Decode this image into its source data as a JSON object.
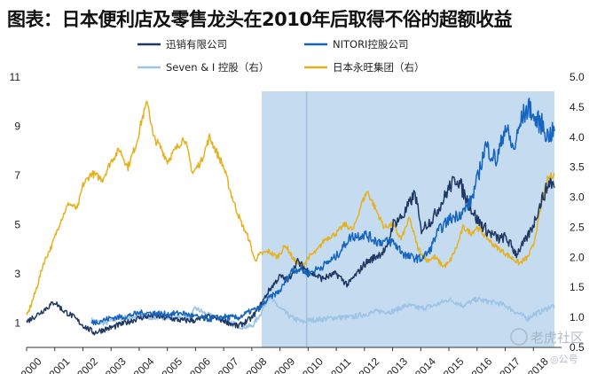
{
  "title": "图表：日本便利店及零售龙头在2010年后取得不俗的超额收益",
  "watermark": {
    "brand": "老虎社区",
    "sub": "◎公号"
  },
  "chart_data": {
    "type": "line",
    "x_years": [
      "2000",
      "2001",
      "2002",
      "2003",
      "2004",
      "2005",
      "2006",
      "2007",
      "2008",
      "2009",
      "2010",
      "2011",
      "2012",
      "2013",
      "2014",
      "2015",
      "2016",
      "2017",
      "2018"
    ],
    "ylim_left": [
      0,
      11
    ],
    "yticks_left": [
      "1",
      "3",
      "5",
      "7",
      "9",
      "11"
    ],
    "ylim_right": [
      0.5,
      5.0
    ],
    "yticks_right": [
      "0.5",
      "1.0",
      "1.5",
      "2.0",
      "2.5",
      "3.0",
      "3.5",
      "4.0",
      "4.5",
      "5.0"
    ],
    "shaded_period": {
      "start": 2008.35,
      "end": 2018.75,
      "divider": 2009.95,
      "color": "#c5dcf0"
    },
    "series": [
      {
        "name": "迅销有限公司",
        "color": "#1f3864",
        "axis": "left",
        "points": [
          [
            2000,
            1.05
          ],
          [
            2000.4,
            1.35
          ],
          [
            2000.7,
            1.6
          ],
          [
            2001,
            1.85
          ],
          [
            2001.3,
            1.5
          ],
          [
            2001.6,
            1.3
          ],
          [
            2002,
            0.9
          ],
          [
            2002.4,
            0.6
          ],
          [
            2002.8,
            0.75
          ],
          [
            2003,
            0.8
          ],
          [
            2003.5,
            1.0
          ],
          [
            2004,
            1.2
          ],
          [
            2004.5,
            1.3
          ],
          [
            2005,
            1.2
          ],
          [
            2005.5,
            1.1
          ],
          [
            2006,
            1.1
          ],
          [
            2006.5,
            1.25
          ],
          [
            2007,
            1.1
          ],
          [
            2007.5,
            0.85
          ],
          [
            2008,
            1.2
          ],
          [
            2008.3,
            1.7
          ],
          [
            2008.6,
            2.3
          ],
          [
            2009,
            2.9
          ],
          [
            2009.3,
            2.7
          ],
          [
            2009.6,
            3.5
          ],
          [
            2010,
            3.1
          ],
          [
            2010.5,
            2.8
          ],
          [
            2011,
            3.0
          ],
          [
            2011.4,
            2.55
          ],
          [
            2011.8,
            3.1
          ],
          [
            2012,
            3.4
          ],
          [
            2012.4,
            3.7
          ],
          [
            2012.8,
            4.0
          ],
          [
            2013,
            5.0
          ],
          [
            2013.4,
            5.4
          ],
          [
            2013.8,
            6.3
          ],
          [
            2014,
            4.8
          ],
          [
            2014.4,
            5.2
          ],
          [
            2014.8,
            6.0
          ],
          [
            2015,
            6.5
          ],
          [
            2015.3,
            6.9
          ],
          [
            2015.6,
            6.1
          ],
          [
            2016,
            5.2
          ],
          [
            2016.4,
            4.7
          ],
          [
            2016.8,
            4.4
          ],
          [
            2017,
            4.5
          ],
          [
            2017.4,
            3.8
          ],
          [
            2017.8,
            4.5
          ],
          [
            2018,
            5.0
          ],
          [
            2018.3,
            6.0
          ],
          [
            2018.6,
            6.8
          ],
          [
            2018.75,
            6.5
          ]
        ]
      },
      {
        "name": "NITORI控股公司",
        "color": "#1565c0",
        "axis": "left",
        "points": [
          [
            2002.3,
            1.0
          ],
          [
            2002.7,
            1.1
          ],
          [
            2003,
            1.2
          ],
          [
            2003.5,
            1.25
          ],
          [
            2004,
            1.4
          ],
          [
            2004.5,
            1.4
          ],
          [
            2005,
            1.35
          ],
          [
            2005.5,
            1.4
          ],
          [
            2006,
            1.25
          ],
          [
            2006.5,
            1.15
          ],
          [
            2007,
            1.25
          ],
          [
            2007.5,
            1.2
          ],
          [
            2008,
            1.5
          ],
          [
            2008.3,
            1.6
          ],
          [
            2008.6,
            2.0
          ],
          [
            2009,
            2.3
          ],
          [
            2009.4,
            3.1
          ],
          [
            2009.7,
            3.2
          ],
          [
            2010,
            3.0
          ],
          [
            2010.5,
            3.3
          ],
          [
            2011,
            3.7
          ],
          [
            2011.5,
            4.5
          ],
          [
            2012,
            4.6
          ],
          [
            2012.5,
            4.3
          ],
          [
            2013,
            4.3
          ],
          [
            2013.5,
            3.7
          ],
          [
            2014,
            3.6
          ],
          [
            2014.3,
            3.9
          ],
          [
            2014.6,
            4.7
          ],
          [
            2015,
            5.2
          ],
          [
            2015.5,
            5.5
          ],
          [
            2015.8,
            6.0
          ],
          [
            2016,
            6.8
          ],
          [
            2016.3,
            8.2
          ],
          [
            2016.7,
            7.6
          ],
          [
            2017,
            9.0
          ],
          [
            2017.3,
            8.0
          ],
          [
            2017.6,
            9.4
          ],
          [
            2017.9,
            9.8
          ],
          [
            2018,
            9.3
          ],
          [
            2018.3,
            9.1
          ],
          [
            2018.5,
            8.6
          ],
          [
            2018.75,
            8.8
          ]
        ]
      },
      {
        "name": "Seven & I 控股（右）",
        "color": "#9dc3e6",
        "axis": "right",
        "points": [
          [
            2002.3,
            0.95
          ],
          [
            2002.8,
            0.9
          ],
          [
            2003.3,
            1.0
          ],
          [
            2003.8,
            1.0
          ],
          [
            2004.3,
            1.0
          ],
          [
            2004.8,
            1.0
          ],
          [
            2005.3,
            0.98
          ],
          [
            2005.8,
            1.0
          ],
          [
            2006,
            1.15
          ],
          [
            2006.4,
            1.05
          ],
          [
            2006.8,
            0.98
          ],
          [
            2007.2,
            0.92
          ],
          [
            2007.6,
            0.85
          ],
          [
            2008,
            0.85
          ],
          [
            2008.3,
            1.05
          ],
          [
            2008.6,
            1.35
          ],
          [
            2009,
            1.15
          ],
          [
            2009.4,
            1.0
          ],
          [
            2009.8,
            0.92
          ],
          [
            2010,
            0.95
          ],
          [
            2010.5,
            0.97
          ],
          [
            2011,
            1.0
          ],
          [
            2011.5,
            1.0
          ],
          [
            2012,
            1.05
          ],
          [
            2012.5,
            1.1
          ],
          [
            2013,
            1.1
          ],
          [
            2013.5,
            1.2
          ],
          [
            2014,
            1.15
          ],
          [
            2014.5,
            1.2
          ],
          [
            2015,
            1.3
          ],
          [
            2015.5,
            1.2
          ],
          [
            2016,
            1.3
          ],
          [
            2016.3,
            1.27
          ],
          [
            2016.7,
            1.24
          ],
          [
            2017,
            1.2
          ],
          [
            2017.4,
            1.08
          ],
          [
            2017.8,
            0.98
          ],
          [
            2018,
            1.05
          ],
          [
            2018.3,
            1.1
          ],
          [
            2018.6,
            1.18
          ],
          [
            2018.75,
            1.2
          ]
        ]
      },
      {
        "name": "日本永旺集团（右）",
        "color": "#e6b11e",
        "axis": "right",
        "points": [
          [
            2000,
            1.0
          ],
          [
            2000.3,
            1.4
          ],
          [
            2000.6,
            1.9
          ],
          [
            2000.9,
            2.2
          ],
          [
            2001.2,
            2.6
          ],
          [
            2001.5,
            2.9
          ],
          [
            2001.8,
            2.8
          ],
          [
            2002,
            3.2
          ],
          [
            2002.3,
            3.4
          ],
          [
            2002.7,
            3.3
          ],
          [
            2003,
            3.6
          ],
          [
            2003.3,
            3.8
          ],
          [
            2003.6,
            3.5
          ],
          [
            2003.9,
            3.9
          ],
          [
            2004.1,
            4.3
          ],
          [
            2004.3,
            4.6
          ],
          [
            2004.5,
            4.0
          ],
          [
            2004.8,
            3.8
          ],
          [
            2005,
            3.6
          ],
          [
            2005.3,
            3.8
          ],
          [
            2005.6,
            4.0
          ],
          [
            2005.9,
            3.4
          ],
          [
            2006.2,
            3.6
          ],
          [
            2006.5,
            4.0
          ],
          [
            2006.8,
            3.7
          ],
          [
            2007,
            3.5
          ],
          [
            2007.3,
            3.0
          ],
          [
            2007.6,
            2.6
          ],
          [
            2007.9,
            2.3
          ],
          [
            2008.1,
            1.95
          ],
          [
            2008.3,
            2.05
          ],
          [
            2008.6,
            2.1
          ],
          [
            2008.9,
            2.0
          ],
          [
            2009.2,
            2.2
          ],
          [
            2009.5,
            1.95
          ],
          [
            2009.8,
            1.85
          ],
          [
            2010,
            2.0
          ],
          [
            2010.3,
            2.1
          ],
          [
            2010.6,
            2.3
          ],
          [
            2011,
            2.4
          ],
          [
            2011.3,
            2.55
          ],
          [
            2011.6,
            2.45
          ],
          [
            2011.9,
            2.9
          ],
          [
            2012.1,
            3.1
          ],
          [
            2012.4,
            2.8
          ],
          [
            2012.7,
            2.5
          ],
          [
            2013,
            2.55
          ],
          [
            2013.3,
            2.3
          ],
          [
            2013.6,
            2.65
          ],
          [
            2013.9,
            2.15
          ],
          [
            2014.2,
            1.95
          ],
          [
            2014.5,
            2.0
          ],
          [
            2014.8,
            1.85
          ],
          [
            2015,
            1.9
          ],
          [
            2015.3,
            2.2
          ],
          [
            2015.5,
            2.5
          ],
          [
            2015.8,
            2.4
          ],
          [
            2016,
            2.5
          ],
          [
            2016.3,
            2.35
          ],
          [
            2016.6,
            2.2
          ],
          [
            2016.9,
            2.1
          ],
          [
            2017.2,
            2.0
          ],
          [
            2017.5,
            1.9
          ],
          [
            2017.8,
            2.0
          ],
          [
            2018,
            2.2
          ],
          [
            2018.3,
            2.9
          ],
          [
            2018.5,
            3.3
          ],
          [
            2018.75,
            3.4
          ]
        ]
      }
    ]
  }
}
